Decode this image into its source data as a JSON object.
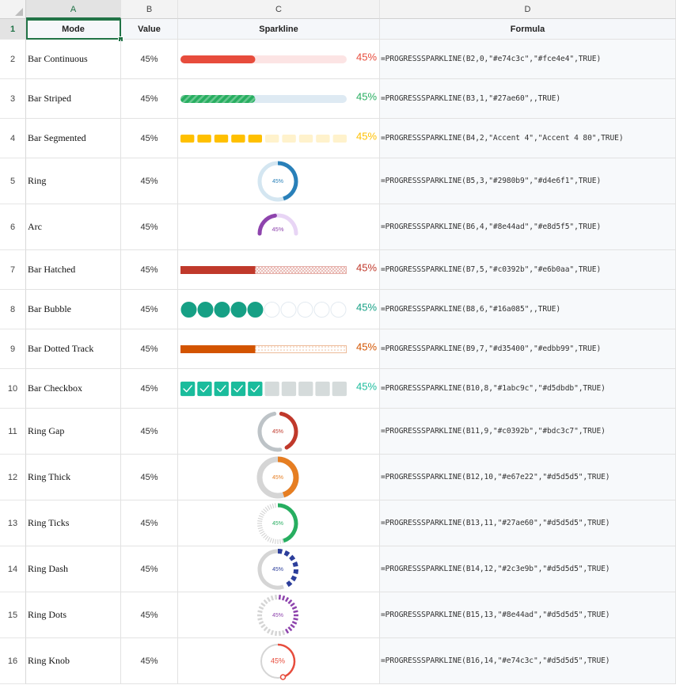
{
  "columns": [
    {
      "letter": "A",
      "header": "Mode"
    },
    {
      "letter": "B",
      "header": "Value"
    },
    {
      "letter": "C",
      "header": "Sparkline"
    },
    {
      "letter": "D",
      "header": "Formula"
    }
  ],
  "header_row_number": "1",
  "rows": [
    {
      "num": "2",
      "mode": "Bar Continuous",
      "value": "45%",
      "pct": 0.45,
      "kind": "bar-continuous",
      "color": "#e74c3c",
      "track": "#fce4e4",
      "label": "45%",
      "formula": "=PROGRESSSPARKLINE(B2,0,\"#e74c3c\",\"#fce4e4\",TRUE)"
    },
    {
      "num": "3",
      "mode": "Bar Striped",
      "value": "45%",
      "pct": 0.45,
      "kind": "bar-striped",
      "color": "#27ae60",
      "track": "#deeaf3",
      "label": "45%",
      "formula": "=PROGRESSSPARKLINE(B3,1,\"#27ae60\",,TRUE)"
    },
    {
      "num": "4",
      "mode": "Bar Segmented",
      "value": "45%",
      "pct": 0.45,
      "kind": "bar-segmented",
      "color": "#ffc000",
      "track": "#fff2cc",
      "label": "45%",
      "formula": "=PROGRESSSPARKLINE(B4,2,\"Accent 4\",\"Accent 4 80\",TRUE)"
    },
    {
      "num": "5",
      "mode": "Ring",
      "value": "45%",
      "pct": 0.45,
      "kind": "ring",
      "color": "#2980b9",
      "track": "#d4e6f1",
      "label": "45%",
      "formula": "=PROGRESSSPARKLINE(B5,3,\"#2980b9\",\"#d4e6f1\",TRUE)"
    },
    {
      "num": "6",
      "mode": "Arc",
      "value": "45%",
      "pct": 0.45,
      "kind": "arc",
      "color": "#8e44ad",
      "track": "#e8d5f5",
      "label": "45%",
      "formula": "=PROGRESSSPARKLINE(B6,4,\"#8e44ad\",\"#e8d5f5\",TRUE)"
    },
    {
      "num": "7",
      "mode": "Bar Hatched",
      "value": "45%",
      "pct": 0.45,
      "kind": "bar-hatched",
      "color": "#c0392b",
      "track": "#e6b0aa",
      "label": "45%",
      "formula": "=PROGRESSSPARKLINE(B7,5,\"#c0392b\",\"#e6b0aa\",TRUE)"
    },
    {
      "num": "8",
      "mode": "Bar Bubble",
      "value": "45%",
      "pct": 0.45,
      "kind": "bar-bubble",
      "color": "#16a085",
      "track": "#e3eaf0",
      "label": "45%",
      "formula": "=PROGRESSSPARKLINE(B8,6,\"#16a085\",,TRUE)"
    },
    {
      "num": "9",
      "mode": "Bar Dotted Track",
      "value": "45%",
      "pct": 0.45,
      "kind": "bar-dotted",
      "color": "#d35400",
      "track": "#edbb99",
      "label": "45%",
      "formula": "=PROGRESSSPARKLINE(B9,7,\"#d35400\",\"#edbb99\",TRUE)"
    },
    {
      "num": "10",
      "mode": "Bar Checkbox",
      "value": "45%",
      "pct": 0.45,
      "kind": "bar-checkbox",
      "color": "#1abc9c",
      "track": "#d5dbdb",
      "label": "45%",
      "formula": "=PROGRESSSPARKLINE(B10,8,\"#1abc9c\",\"#d5dbdb\",TRUE)"
    },
    {
      "num": "11",
      "mode": "Ring Gap",
      "value": "45%",
      "pct": 0.45,
      "kind": "ring-gap",
      "color": "#c0392b",
      "track": "#bdc3c7",
      "label": "45%",
      "formula": "=PROGRESSSPARKLINE(B11,9,\"#c0392b\",\"#bdc3c7\",TRUE)"
    },
    {
      "num": "12",
      "mode": "Ring Thick",
      "value": "45%",
      "pct": 0.45,
      "kind": "ring-thick",
      "color": "#e67e22",
      "track": "#d5d5d5",
      "label": "45%",
      "formula": "=PROGRESSSPARKLINE(B12,10,\"#e67e22\",\"#d5d5d5\",TRUE)"
    },
    {
      "num": "13",
      "mode": "Ring Ticks",
      "value": "45%",
      "pct": 0.45,
      "kind": "ring-ticks",
      "color": "#27ae60",
      "track": "#d5d5d5",
      "label": "45%",
      "formula": "=PROGRESSSPARKLINE(B13,11,\"#27ae60\",\"#d5d5d5\",TRUE)"
    },
    {
      "num": "14",
      "mode": "Ring Dash",
      "value": "45%",
      "pct": 0.45,
      "kind": "ring-dash",
      "color": "#2c3e9b",
      "track": "#d5d5d5",
      "label": "45%",
      "formula": "=PROGRESSSPARKLINE(B14,12,\"#2c3e9b\",\"#d5d5d5\",TRUE)"
    },
    {
      "num": "15",
      "mode": "Ring Dots",
      "value": "45%",
      "pct": 0.45,
      "kind": "ring-dots",
      "color": "#8e44ad",
      "track": "#d5d5d5",
      "label": "45%",
      "formula": "=PROGRESSSPARKLINE(B15,13,\"#8e44ad\",\"#d5d5d5\",TRUE)"
    },
    {
      "num": "16",
      "mode": "Ring Knob",
      "value": "45%",
      "pct": 0.45,
      "kind": "ring-knob",
      "color": "#e74c3c",
      "track": "#d5d5d5",
      "label": "45%",
      "formula": "=PROGRESSSPARKLINE(B16,14,\"#e74c3c\",\"#d5d5d5\",TRUE)"
    }
  ]
}
